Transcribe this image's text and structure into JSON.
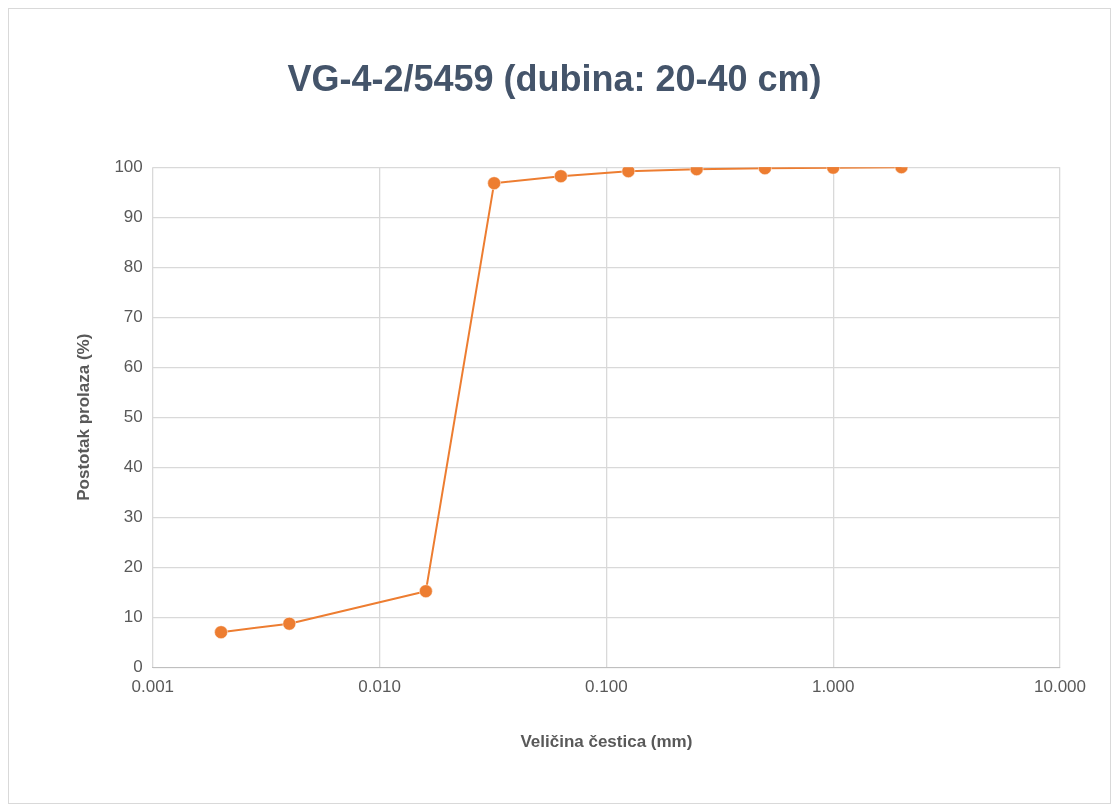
{
  "chart_data": {
    "type": "line",
    "title": "VG-4-2/5459 (dubina: 20-40 cm)",
    "xlabel": "Veličina čestica (mm)",
    "ylabel": "Postotak prolaza (%)",
    "x": [
      0.002,
      0.004,
      0.016,
      0.032,
      0.063,
      0.125,
      0.25,
      0.5,
      1,
      2
    ],
    "series": [
      {
        "color": "#ed7d31",
        "values": [
          7,
          8.7,
          15.2,
          96.8,
          98.2,
          99.2,
          99.6,
          99.8,
          99.9,
          100
        ]
      }
    ],
    "log": "x",
    "xlim": [
      0.001,
      10
    ],
    "xticks": [
      {
        "value": 0.001,
        "label": "0.001"
      },
      {
        "value": 0.01,
        "label": "0.010"
      },
      {
        "value": 0.1,
        "label": "0.100"
      },
      {
        "value": 1,
        "label": "1.000"
      },
      {
        "value": 10,
        "label": "10.000"
      }
    ],
    "ylim": [
      0,
      100
    ],
    "yticks": [
      0,
      10,
      20,
      30,
      40,
      50,
      60,
      70,
      80,
      90,
      100
    ],
    "grid": true,
    "marker": "circle",
    "line_style": "solid",
    "legend": false
  }
}
